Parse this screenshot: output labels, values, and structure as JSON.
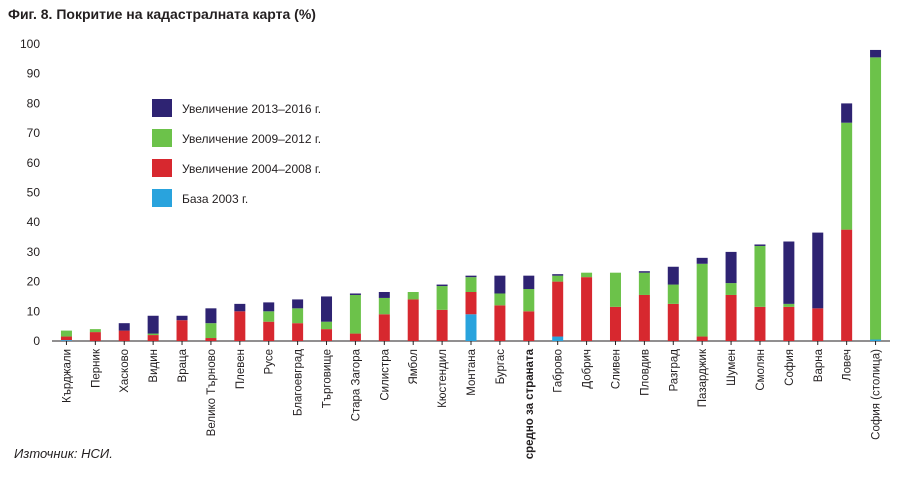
{
  "title": "Фиг. 8. Покритие на кадастралната карта (%)",
  "source": "Източник: НСИ.",
  "colors": {
    "base": "#29a3dd",
    "p2004": "#d7282f",
    "p2009": "#6cc24a",
    "p2013": "#2e2372",
    "axis": "#231f20"
  },
  "chart_data": {
    "type": "bar",
    "stacked": true,
    "ylim": [
      0,
      100
    ],
    "yticks": [
      0,
      10,
      20,
      30,
      40,
      50,
      60,
      70,
      80,
      90,
      100
    ],
    "legend_position": "upper-left",
    "categories": [
      "Кърджали",
      "Перник",
      "Хасково",
      "Видин",
      "Враца",
      "Велико Търново",
      "Плевен",
      "Русе",
      "Благоевград",
      "Търговище",
      "Стара Загора",
      "Силистра",
      "Ямбол",
      "Кюстендил",
      "Монтана",
      "Бургас",
      "средно за страната",
      "Габрово",
      "Добрич",
      "Сливен",
      "Пловдив",
      "Разград",
      "Пазарджик",
      "Шумен",
      "Смолян",
      "София",
      "Варна",
      "Ловеч",
      "София (столица)"
    ],
    "bold_categories": [
      "средно за страната"
    ],
    "series": [
      {
        "name": "База 2003 г.",
        "color_key": "base",
        "values": [
          0.3,
          0,
          0,
          0,
          0,
          0,
          0,
          0,
          0,
          0,
          0,
          0,
          0,
          0,
          9,
          0,
          0,
          1.5,
          0,
          0,
          0,
          0,
          0,
          0,
          0,
          0,
          0,
          0,
          0.5
        ]
      },
      {
        "name": "Увеличение 2004–2008 г.",
        "color_key": "p2004",
        "values": [
          1.2,
          3,
          3.5,
          2,
          7,
          1,
          10,
          6.5,
          6,
          4,
          2.5,
          9,
          14,
          10.5,
          7.5,
          12,
          10,
          18.5,
          21.5,
          11.5,
          15.5,
          12.5,
          1.5,
          15.5,
          11.5,
          11.5,
          11,
          37.5,
          0
        ]
      },
      {
        "name": "Увеличение 2009–2012 г.",
        "color_key": "p2009",
        "values": [
          2,
          1,
          0,
          0.5,
          0,
          5,
          0,
          3.5,
          5,
          2.5,
          13,
          5.5,
          2.5,
          8,
          5,
          4,
          7.5,
          2,
          1.5,
          11.5,
          7.5,
          6.5,
          24.5,
          4,
          20.5,
          1,
          0,
          36,
          95
        ]
      },
      {
        "name": "Увеличение 2013–2016 г.",
        "color_key": "p2013",
        "values": [
          0,
          0,
          2.5,
          6,
          1.5,
          5,
          2.5,
          3,
          3,
          8.5,
          0.5,
          2,
          0,
          0.5,
          0.5,
          6,
          4.5,
          0.5,
          0,
          0,
          0.5,
          6,
          2,
          10.5,
          0.5,
          21,
          25.5,
          6.5,
          2.5
        ]
      }
    ]
  }
}
